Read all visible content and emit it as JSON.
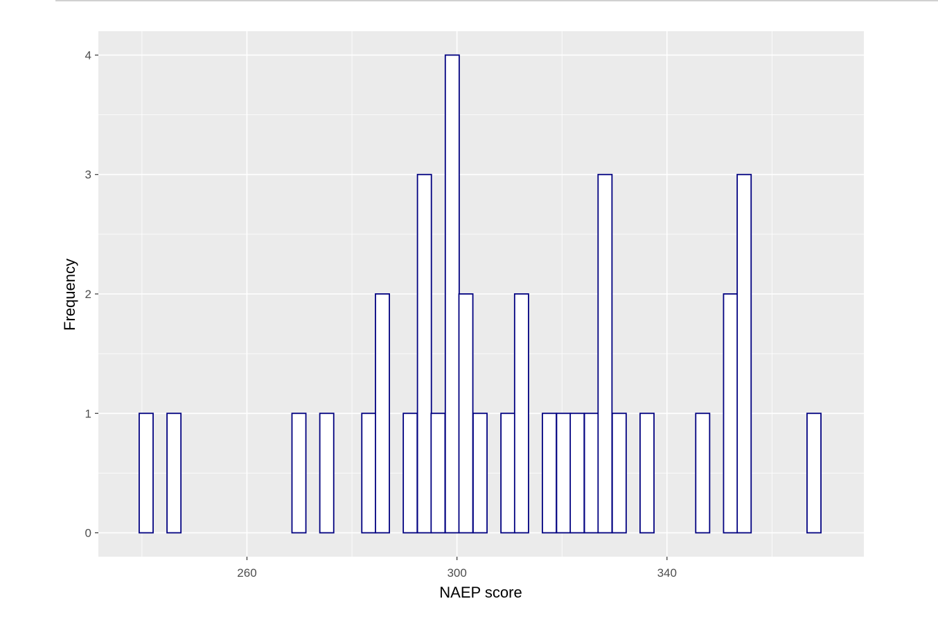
{
  "chart_data": {
    "type": "bar",
    "subtype": "histogram",
    "title": "",
    "xlabel": "NAEP score",
    "ylabel": "Frequency",
    "x_ticks": [
      260,
      300,
      340
    ],
    "y_ticks": [
      0,
      1,
      2,
      3,
      4
    ],
    "xlim": [
      231.7,
      377.5
    ],
    "ylim": [
      -0.2,
      4.2
    ],
    "bin_width": 2.65,
    "bins": [
      {
        "x": 240.8,
        "count": 1
      },
      {
        "x": 243.4,
        "count": 0
      },
      {
        "x": 246.1,
        "count": 1
      },
      {
        "x": 248.7,
        "count": 0
      },
      {
        "x": 251.4,
        "count": 0
      },
      {
        "x": 254.0,
        "count": 0
      },
      {
        "x": 256.7,
        "count": 0
      },
      {
        "x": 259.3,
        "count": 0
      },
      {
        "x": 262.0,
        "count": 0
      },
      {
        "x": 264.6,
        "count": 0
      },
      {
        "x": 267.3,
        "count": 0
      },
      {
        "x": 269.9,
        "count": 1
      },
      {
        "x": 272.6,
        "count": 0
      },
      {
        "x": 275.2,
        "count": 1
      },
      {
        "x": 277.9,
        "count": 0
      },
      {
        "x": 280.5,
        "count": 0
      },
      {
        "x": 283.2,
        "count": 1
      },
      {
        "x": 285.8,
        "count": 2
      },
      {
        "x": 288.5,
        "count": 0
      },
      {
        "x": 291.1,
        "count": 1
      },
      {
        "x": 293.8,
        "count": 3
      },
      {
        "x": 296.4,
        "count": 1
      },
      {
        "x": 299.1,
        "count": 4
      },
      {
        "x": 301.7,
        "count": 2
      },
      {
        "x": 304.4,
        "count": 1
      },
      {
        "x": 307.0,
        "count": 0
      },
      {
        "x": 309.7,
        "count": 1
      },
      {
        "x": 312.3,
        "count": 2
      },
      {
        "x": 315.0,
        "count": 0
      },
      {
        "x": 317.6,
        "count": 1
      },
      {
        "x": 320.3,
        "count": 1
      },
      {
        "x": 322.9,
        "count": 1
      },
      {
        "x": 325.6,
        "count": 1
      },
      {
        "x": 328.2,
        "count": 3
      },
      {
        "x": 330.9,
        "count": 1
      },
      {
        "x": 333.5,
        "count": 0
      },
      {
        "x": 336.2,
        "count": 1
      },
      {
        "x": 338.8,
        "count": 0
      },
      {
        "x": 341.5,
        "count": 0
      },
      {
        "x": 344.1,
        "count": 0
      },
      {
        "x": 346.8,
        "count": 1
      },
      {
        "x": 349.4,
        "count": 0
      },
      {
        "x": 352.1,
        "count": 2
      },
      {
        "x": 354.7,
        "count": 3
      },
      {
        "x": 357.4,
        "count": 0
      },
      {
        "x": 360.0,
        "count": 0
      },
      {
        "x": 362.7,
        "count": 0
      },
      {
        "x": 365.3,
        "count": 0
      },
      {
        "x": 368.0,
        "count": 1
      }
    ],
    "bar_fill": "#ffffff",
    "bar_outline": "#000080",
    "panel_background": "#ebebeb",
    "grid_color": "#ffffff",
    "grid": true,
    "legend": "none"
  }
}
